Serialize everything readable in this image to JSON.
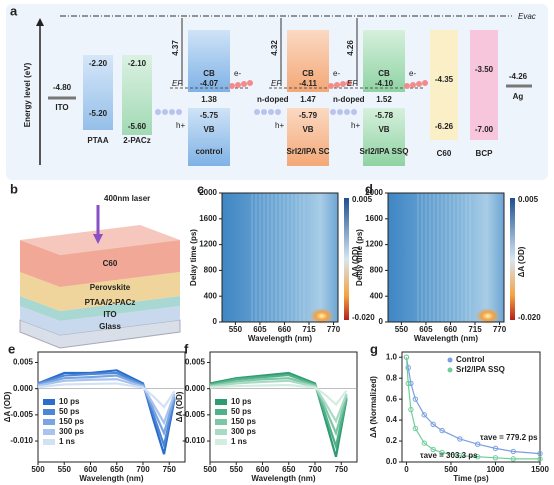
{
  "panel_labels": [
    "a",
    "b",
    "c",
    "d",
    "e",
    "f",
    "g"
  ],
  "energy_diagram": {
    "vacuum_label": "Evac",
    "y_label": "Energy level (eV)",
    "ito": {
      "name": "ITO",
      "level": "-4.80"
    },
    "ptaa": {
      "name": "PTAA",
      "lumo": "-2.20",
      "homo": "-5.20"
    },
    "pacz": {
      "name": "2-PACz",
      "lumo": "-2.10",
      "homo": "-5.60"
    },
    "devices": [
      {
        "name": "control",
        "cb_label": "CB",
        "vb_label": "VB",
        "work_function": "4.37",
        "cb": "-4.07",
        "fermi_gap": "1.38",
        "vb": "-5.75",
        "fermi": "EF",
        "electron": "e-",
        "hole": "h+"
      },
      {
        "name": "SrI2/IPA SC",
        "cb_label": "CB",
        "vb_label": "VB",
        "work_function": "4.32",
        "cb": "-4.11",
        "fermi_gap": "1.47",
        "vb": "-5.79",
        "fermi": "EF",
        "electron": "e-",
        "hole": "h+",
        "doping": "n-doped"
      },
      {
        "name": "SrI2/IPA SSQ",
        "cb_label": "CB",
        "vb_label": "VB",
        "work_function": "4.26",
        "cb": "-4.10",
        "fermi_gap": "1.52",
        "vb": "-5.78",
        "fermi": "EF",
        "electron": "e-",
        "hole": "h+",
        "doping": "n-doped"
      }
    ],
    "c60": {
      "name": "C60",
      "lumo": "-4.35",
      "homo": "-6.26"
    },
    "bcp": {
      "name": "BCP",
      "lumo": "-3.50",
      "homo": "-7.00"
    },
    "ag": {
      "name": "Ag",
      "level": "-4.26"
    }
  },
  "schematic": {
    "laser": "400nm laser",
    "layers": [
      "C60",
      "Perovskite",
      "PTAA/2-PACz",
      "ITO",
      "Glass"
    ]
  },
  "heatmaps": {
    "c": {
      "xlabel": "Wavelength (nm)",
      "ylabel": "Delay time (ps)",
      "xlim": [
        520,
        780
      ],
      "ylim": [
        0,
        2000
      ],
      "xticks": [
        550,
        605,
        660,
        715,
        770
      ],
      "yticks": [
        0,
        400,
        800,
        1200,
        1600,
        2000
      ],
      "cbar_max": "0.005",
      "cbar_min": "-0.020",
      "cbar_label": "ΔA (OD)"
    },
    "d": {
      "xlabel": "Wavelength (nm)",
      "ylabel": "Delay time (ps)",
      "xlim": [
        520,
        780
      ],
      "ylim": [
        0,
        2000
      ],
      "xticks": [
        550,
        605,
        660,
        715,
        770
      ],
      "yticks": [
        0,
        400,
        800,
        1200,
        1600,
        2000
      ],
      "cbar_max": "0.005",
      "cbar_min": "-0.020",
      "cbar_label": "ΔA (OD)"
    }
  },
  "spectra": {
    "e": {
      "xlabel": "Wavelength (nm)",
      "ylabel": "ΔA (OD)",
      "xlim": [
        500,
        780
      ],
      "ylim": [
        -0.014,
        0.007
      ],
      "xticks": [
        500,
        550,
        600,
        650,
        700,
        750
      ],
      "yticks": [
        0.005,
        {
          "value": 0,
          "label": "0.000"
        },
        -0.005,
        {
          "value": -0.01,
          "label": "-0.010"
        }
      ],
      "x": [
        500,
        550,
        600,
        650,
        700,
        720,
        740,
        760
      ],
      "series": [
        {
          "name": "10 ps",
          "color": "#2a6dcc",
          "values": [
            0.001,
            0.003,
            0.003,
            0.0035,
            0.001,
            -0.006,
            -0.0125,
            -0.002
          ]
        },
        {
          "name": "50 ps",
          "color": "#4d86d6",
          "values": [
            0.001,
            0.0025,
            0.0028,
            0.003,
            0.0008,
            -0.005,
            -0.0108,
            -0.0018
          ]
        },
        {
          "name": "150 ps",
          "color": "#7aa5e2",
          "values": [
            0.0008,
            0.002,
            0.0022,
            0.0025,
            0.0006,
            -0.004,
            -0.0085,
            -0.0015
          ]
        },
        {
          "name": "300 ps",
          "color": "#a8c4ec",
          "values": [
            0.0006,
            0.0015,
            0.0017,
            0.0018,
            0.0004,
            -0.003,
            -0.0065,
            -0.001
          ]
        },
        {
          "name": "1 ns",
          "color": "#d3e1f5",
          "values": [
            0.0003,
            0.0008,
            0.0009,
            0.001,
            0.0002,
            -0.0015,
            -0.0035,
            -0.0005
          ]
        }
      ]
    },
    "f": {
      "xlabel": "Wavelength (nm)",
      "ylabel": "ΔA (OD)",
      "xlim": [
        500,
        780
      ],
      "ylim": [
        -0.014,
        0.007
      ],
      "xticks": [
        500,
        550,
        600,
        650,
        700,
        750
      ],
      "yticks": [
        0.005,
        {
          "value": 0,
          "label": "0.000"
        },
        -0.005,
        {
          "value": -0.01,
          "label": "-0.010"
        }
      ],
      "x": [
        500,
        550,
        600,
        650,
        700,
        720,
        740,
        760
      ],
      "series": [
        {
          "name": "10 ps",
          "color": "#2e9c70",
          "values": [
            0.001,
            0.002,
            0.0025,
            0.003,
            0.001,
            -0.006,
            -0.013,
            -0.002
          ]
        },
        {
          "name": "50 ps",
          "color": "#50b088",
          "values": [
            0.0008,
            0.0018,
            0.0022,
            0.0026,
            0.0008,
            -0.005,
            -0.011,
            -0.0017
          ]
        },
        {
          "name": "150 ps",
          "color": "#7dc6a6",
          "values": [
            0.0006,
            0.0014,
            0.0018,
            0.002,
            0.0006,
            -0.0038,
            -0.0085,
            -0.0013
          ]
        },
        {
          "name": "300 ps",
          "color": "#a9dac4",
          "values": [
            0.0004,
            0.001,
            0.0013,
            0.0015,
            0.0004,
            -0.0028,
            -0.0062,
            -0.001
          ]
        },
        {
          "name": "1 ns",
          "color": "#d4ede2",
          "values": [
            0.0002,
            0.0005,
            0.0006,
            0.0007,
            0.0002,
            -0.0012,
            -0.003,
            -0.0004
          ]
        }
      ]
    }
  },
  "decay": {
    "xlabel": "Time (ps)",
    "ylabel": "ΔA (Normalized)",
    "xlim": [
      -50,
      1500
    ],
    "ylim": [
      0,
      1.05
    ],
    "xticks": [
      0,
      500,
      1000,
      1500
    ],
    "yticks": [
      {
        "value": 0,
        "label": "0.0"
      },
      0.2,
      0.4,
      0.6,
      0.8,
      {
        "value": 1,
        "label": "1.0"
      }
    ],
    "x": [
      0,
      20,
      50,
      100,
      200,
      300,
      400,
      600,
      800,
      1000,
      1200,
      1500
    ],
    "series": [
      {
        "name": "Control",
        "color": "#7a9fe0",
        "values": [
          1.0,
          0.9,
          0.75,
          0.6,
          0.45,
          0.36,
          0.3,
          0.22,
          0.17,
          0.13,
          0.1,
          0.08
        ]
      },
      {
        "name": "SrI2/IPA SSQ",
        "color": "#6fcf9c",
        "values": [
          1.0,
          0.75,
          0.5,
          0.32,
          0.18,
          0.12,
          0.09,
          0.06,
          0.05,
          0.04,
          0.03,
          0.03
        ]
      }
    ],
    "annotations": [
      "τave = 779.2 ps",
      "τave = 303.3 ps"
    ]
  }
}
